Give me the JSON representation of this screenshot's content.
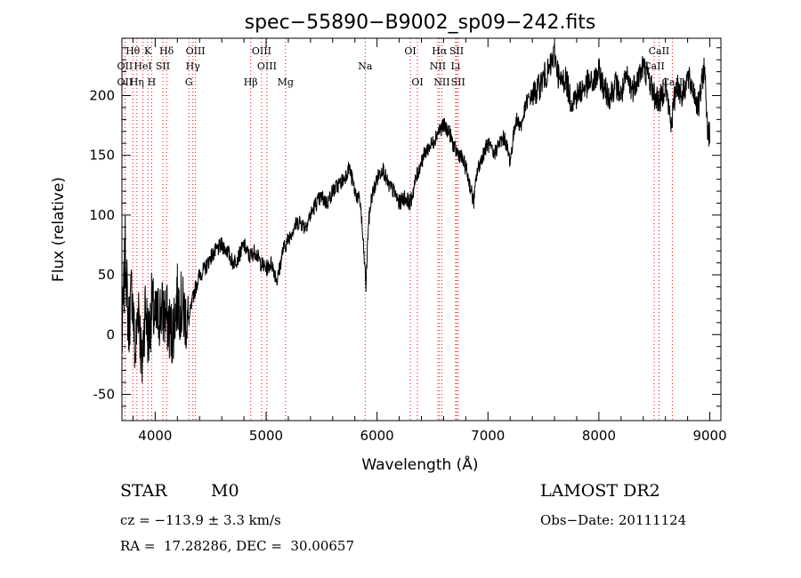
{
  "chart_data": {
    "type": "line",
    "title": "spec−55890−B9002_sp09−242.fits",
    "xlabel": "Wavelength (Å)",
    "ylabel": "Flux (relative)",
    "xlim": [
      3700,
      9100
    ],
    "ylim": [
      -72,
      248
    ],
    "xticks": [
      4000,
      5000,
      6000,
      7000,
      8000,
      9000
    ],
    "yticks": [
      -50,
      0,
      50,
      100,
      150,
      200
    ],
    "grid": false,
    "series": [
      {
        "x": [
          3700,
          3730,
          3760,
          3790,
          3820,
          3850,
          3880,
          3910,
          3940,
          3970,
          4000,
          4050,
          4100,
          4150,
          4200,
          4250,
          4300,
          4350,
          4400,
          4450,
          4500,
          4550,
          4600,
          4650,
          4700,
          4750,
          4800,
          4850,
          4900,
          4950,
          5000,
          5050,
          5100,
          5150,
          5200,
          5250,
          5300,
          5350,
          5400,
          5450,
          5500,
          5550,
          5600,
          5650,
          5700,
          5750,
          5800,
          5850,
          5880,
          5900,
          5920,
          5950,
          6000,
          6050,
          6100,
          6150,
          6200,
          6250,
          6300,
          6350,
          6400,
          6450,
          6500,
          6550,
          6600,
          6650,
          6700,
          6750,
          6800,
          6850,
          6870,
          6900,
          6950,
          7000,
          7050,
          7100,
          7150,
          7200,
          7250,
          7300,
          7350,
          7400,
          7450,
          7500,
          7550,
          7600,
          7650,
          7700,
          7750,
          7800,
          7850,
          7900,
          7950,
          8000,
          8050,
          8100,
          8150,
          8200,
          8250,
          8300,
          8350,
          8400,
          8450,
          8500,
          8550,
          8600,
          8650,
          8700,
          8750,
          8800,
          8850,
          8900,
          8950,
          8980,
          9000
        ],
        "y": [
          -10,
          70,
          5,
          40,
          -20,
          30,
          -30,
          25,
          -5,
          25,
          10,
          20,
          15,
          0,
          30,
          20,
          10,
          35,
          50,
          55,
          65,
          70,
          75,
          70,
          60,
          65,
          75,
          65,
          70,
          60,
          55,
          60,
          45,
          70,
          80,
          90,
          95,
          90,
          100,
          110,
          115,
          110,
          120,
          125,
          130,
          140,
          120,
          110,
          70,
          40,
          90,
          115,
          130,
          140,
          125,
          120,
          110,
          115,
          110,
          130,
          145,
          155,
          160,
          170,
          175,
          170,
          155,
          150,
          140,
          120,
          110,
          135,
          150,
          160,
          150,
          160,
          165,
          145,
          180,
          175,
          195,
          200,
          205,
          215,
          220,
          235,
          210,
          215,
          195,
          200,
          205,
          210,
          210,
          220,
          205,
          200,
          210,
          200,
          215,
          205,
          215,
          225,
          215,
          200,
          195,
          210,
          175,
          210,
          200,
          215,
          205,
          190,
          225,
          175,
          165
        ]
      }
    ],
    "spectral_lines": [
      {
        "name": "Hθ",
        "x": 3798,
        "row": 0
      },
      {
        "name": "K",
        "x": 3934,
        "row": 0
      },
      {
        "name": "Hδ",
        "x": 4102,
        "row": 0
      },
      {
        "name": "OIII",
        "x": 4363,
        "row": 0
      },
      {
        "name": "OIII",
        "x": 4959,
        "row": 0
      },
      {
        "name": "OI",
        "x": 6300,
        "row": 0
      },
      {
        "name": "Hα",
        "x": 6563,
        "row": 0
      },
      {
        "name": "SII",
        "x": 6717,
        "row": 0
      },
      {
        "name": "CaII",
        "x": 8542,
        "row": 0
      },
      {
        "name": "OII",
        "x": 3727,
        "row": 1
      },
      {
        "name": "HeI",
        "x": 3889,
        "row": 1
      },
      {
        "name": "SII",
        "x": 4069,
        "row": 1
      },
      {
        "name": "Hγ",
        "x": 4340,
        "row": 1
      },
      {
        "name": "OIII",
        "x": 5007,
        "row": 1
      },
      {
        "name": "Na",
        "x": 5893,
        "row": 1
      },
      {
        "name": "NII",
        "x": 6548,
        "row": 1
      },
      {
        "name": "Li",
        "x": 6708,
        "row": 1
      },
      {
        "name": "CaII",
        "x": 8498,
        "row": 1
      },
      {
        "name": "OII",
        "x": 3727,
        "row": 2
      },
      {
        "name": "Hη",
        "x": 3835,
        "row": 2
      },
      {
        "name": "H",
        "x": 3968,
        "row": 2
      },
      {
        "name": "G",
        "x": 4304,
        "row": 2
      },
      {
        "name": "Hβ",
        "x": 4861,
        "row": 2
      },
      {
        "name": "Mg",
        "x": 5175,
        "row": 2
      },
      {
        "name": "OI",
        "x": 6364,
        "row": 2
      },
      {
        "name": "NII",
        "x": 6584,
        "row": 2
      },
      {
        "name": "SII",
        "x": 6731,
        "row": 2
      },
      {
        "name": "CaII",
        "x": 8662,
        "row": 2
      }
    ]
  },
  "info": {
    "object_class": "STAR",
    "subclass": "M0",
    "survey": "LAMOST DR2",
    "redshift": "cz = −113.9 ± 3.3 km/s",
    "obs_date": "Obs−Date: 20111124",
    "coords": "RA =  17.28286, DEC =  30.00657"
  },
  "colors": {
    "line_marker": "#ff0000",
    "spectrum": "#000000"
  }
}
